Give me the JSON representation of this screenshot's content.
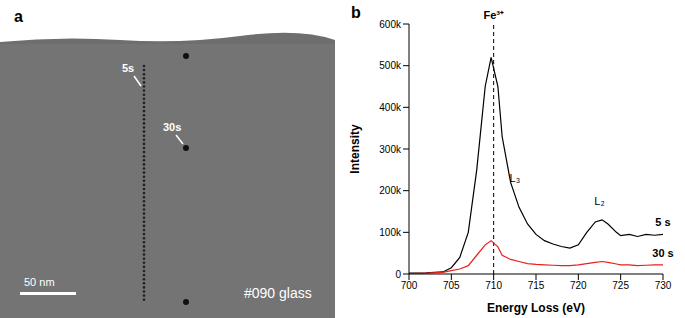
{
  "micrograph": {
    "label": "a",
    "annotations": [
      "5s",
      "30s"
    ],
    "scale_bar": "50 nm",
    "sample": "#090 glass"
  },
  "chart_data": {
    "type": "line",
    "panel_label": "b",
    "x_label": "Energy Loss (eV)",
    "y_label": "Intensity",
    "x": [
      700,
      702,
      704,
      705,
      706,
      707,
      708,
      709,
      709.7,
      710.5,
      711,
      712,
      713,
      714,
      715,
      716,
      717,
      718,
      719,
      720,
      721,
      722,
      722.8,
      723.5,
      724.5,
      725,
      726,
      727,
      728,
      729,
      730
    ],
    "series": [
      {
        "name": "5 s",
        "color": "#000000",
        "values": [
          2000,
          3000,
          5000,
          15000,
          40000,
          100000,
          250000,
          450000,
          520000,
          450000,
          330000,
          220000,
          160000,
          120000,
          95000,
          80000,
          72000,
          66000,
          62000,
          70000,
          100000,
          125000,
          130000,
          120000,
          100000,
          92000,
          95000,
          90000,
          95000,
          93000,
          95000
        ]
      },
      {
        "name": "30 s",
        "color": "#e8211d",
        "values": [
          1000,
          2000,
          4000,
          8000,
          12000,
          20000,
          45000,
          70000,
          80000,
          65000,
          45000,
          35000,
          30000,
          25000,
          23000,
          22000,
          21000,
          20000,
          20000,
          22000,
          25000,
          28000,
          30000,
          28000,
          24000,
          22000,
          22000,
          20000,
          21000,
          22000,
          22000
        ]
      }
    ],
    "xlim": [
      700,
      730
    ],
    "xticks": [
      700,
      705,
      710,
      715,
      720,
      725,
      730
    ],
    "ylim": [
      0,
      600000
    ],
    "yticks": [
      0,
      {
        "value": 100000,
        "label": "100k"
      },
      {
        "value": 200000,
        "label": "200k"
      },
      {
        "value": 300000,
        "label": "300k"
      },
      {
        "value": 400000,
        "label": "400k"
      },
      {
        "value": 500000,
        "label": "500k"
      },
      {
        "value": 600000,
        "label": "600k"
      }
    ],
    "annotations": [
      {
        "text": "Fe³⁺",
        "x": 710,
        "line_style": "dashed"
      },
      {
        "text": "L₃",
        "x": 712.5,
        "y": 230000
      },
      {
        "text": "L₂",
        "x": 722.5,
        "y": 175000
      }
    ]
  }
}
